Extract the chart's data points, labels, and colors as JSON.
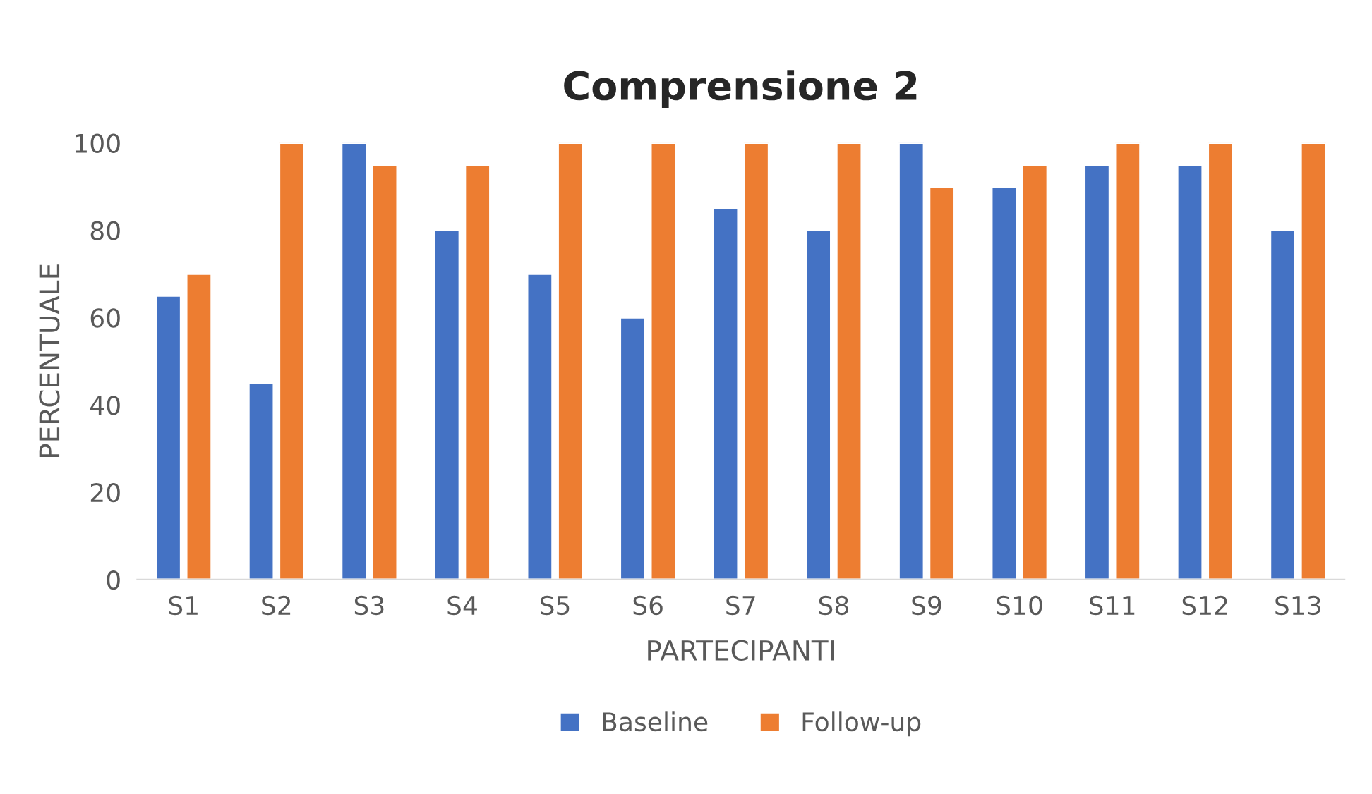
{
  "chart_data": {
    "type": "bar",
    "title": "Comprensione 2",
    "xlabel": "PARTECIPANTI",
    "ylabel": "PERCENTUALE",
    "categories": [
      "S1",
      "S2",
      "S3",
      "S4",
      "S5",
      "S6",
      "S7",
      "S8",
      "S9",
      "S10",
      "S11",
      "S12",
      "S13"
    ],
    "series": [
      {
        "name": "Baseline",
        "color": "#4472c4",
        "values": [
          65,
          45,
          100,
          80,
          70,
          60,
          85,
          80,
          100,
          90,
          95,
          95,
          80
        ]
      },
      {
        "name": "Follow-up",
        "color": "#ed7d31",
        "values": [
          70,
          100,
          95,
          95,
          100,
          100,
          100,
          100,
          90,
          95,
          100,
          100,
          100
        ]
      }
    ],
    "ylim": [
      0,
      100
    ],
    "yticks": [
      0,
      20,
      40,
      60,
      80,
      100
    ],
    "grid": false,
    "legend": "bottom"
  }
}
